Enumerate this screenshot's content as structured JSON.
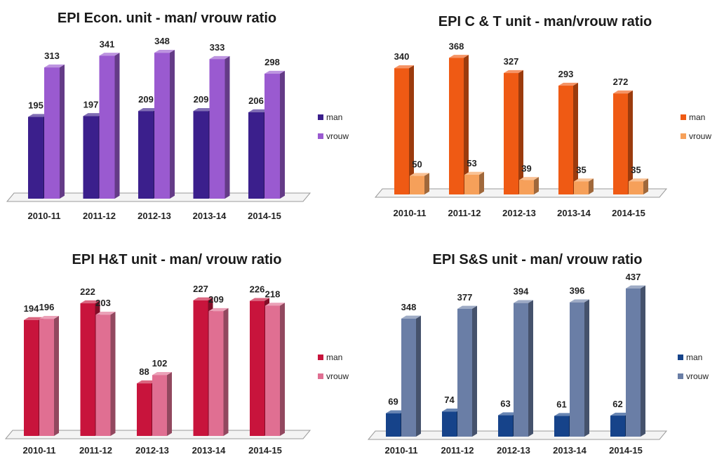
{
  "chart_data": [
    {
      "type": "bar",
      "title": "EPI Econ.  unit - man/ vrouw ratio",
      "categories": [
        "2010-11",
        "2011-12",
        "2012-13",
        "2013-14",
        "2014-15"
      ],
      "series": [
        {
          "name": "man",
          "values": [
            195,
            197,
            209,
            209,
            206
          ],
          "color": "#3b1f8c"
        },
        {
          "name": "vrouw",
          "values": [
            313,
            341,
            348,
            333,
            298
          ],
          "color": "#9a5ad0"
        }
      ],
      "ylim": [
        0,
        360
      ],
      "legend": "right",
      "grid": false
    },
    {
      "type": "bar",
      "title": "EPI C & T unit - man/vrouw ratio",
      "categories": [
        "2010-11",
        "2011-12",
        "2012-13",
        "2013-14",
        "2014-15"
      ],
      "series": [
        {
          "name": "man",
          "values": [
            340,
            368,
            327,
            293,
            272
          ],
          "color": "#ef5a14"
        },
        {
          "name": "vrouw",
          "values": [
            50,
            53,
            39,
            35,
            35
          ],
          "color": "#f6a05a"
        }
      ],
      "ylim": [
        0,
        380
      ],
      "legend": "right",
      "grid": false
    },
    {
      "type": "bar",
      "title": "EPI H&T unit - man/ vrouw ratio",
      "categories": [
        "2010-11",
        "2011-12",
        "2012-13",
        "2013-14",
        "2014-15"
      ],
      "series": [
        {
          "name": "man",
          "values": [
            194,
            222,
            88,
            227,
            226
          ],
          "color": "#c8143c"
        },
        {
          "name": "vrouw",
          "values": [
            196,
            203,
            102,
            209,
            218
          ],
          "color": "#e06f92"
        }
      ],
      "ylim": [
        0,
        235
      ],
      "legend": "right",
      "grid": false
    },
    {
      "type": "bar",
      "title": "EPI S&S unit - man/ vrouw ratio",
      "categories": [
        "2010-11",
        "2011-12",
        "2012-13",
        "2013-14",
        "2014-15"
      ],
      "series": [
        {
          "name": "man",
          "values": [
            69,
            74,
            63,
            61,
            62
          ],
          "color": "#16438a"
        },
        {
          "name": "vrouw",
          "values": [
            348,
            377,
            394,
            396,
            437
          ],
          "color": "#6a7ea6"
        }
      ],
      "ylim": [
        0,
        445
      ],
      "legend": "right",
      "grid": false
    }
  ]
}
